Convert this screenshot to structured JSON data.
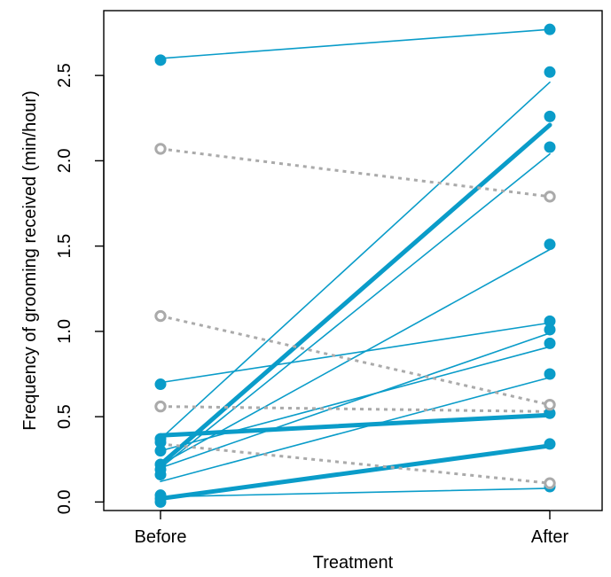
{
  "chart_data": {
    "type": "line",
    "xlabel": "Treatment",
    "ylabel": "Frequency of grooming received (min/hour)",
    "categories": [
      "Before",
      "After"
    ],
    "ylim": [
      -0.05,
      2.88
    ],
    "yticks": [
      0.0,
      0.5,
      1.0,
      1.5,
      2.0,
      2.5
    ],
    "ytick_labels": [
      "0.0",
      "0.5",
      "1.0",
      "1.5",
      "2.0",
      "2.5"
    ],
    "grid": false,
    "legend": "none",
    "colors": {
      "increase": "#0a9cc9",
      "decrease": "#aaaaaa"
    },
    "series": [
      {
        "values": [
          2.6,
          2.77
        ],
        "trend": "increase",
        "bold": false
      },
      {
        "values": [
          0.37,
          2.46
        ],
        "trend": "increase",
        "bold": false
      },
      {
        "values": [
          0.22,
          2.21
        ],
        "trend": "increase",
        "bold": true
      },
      {
        "values": [
          0.2,
          2.04
        ],
        "trend": "increase",
        "bold": false
      },
      {
        "values": [
          0.22,
          1.48
        ],
        "trend": "increase",
        "bold": false
      },
      {
        "values": [
          0.7,
          1.05
        ],
        "trend": "increase",
        "bold": false
      },
      {
        "values": [
          0.2,
          0.99
        ],
        "trend": "increase",
        "bold": false
      },
      {
        "values": [
          0.3,
          0.91
        ],
        "trend": "increase",
        "bold": false
      },
      {
        "values": [
          0.12,
          0.73
        ],
        "trend": "increase",
        "bold": false
      },
      {
        "values": [
          0.39,
          0.51
        ],
        "trend": "increase",
        "bold": true
      },
      {
        "values": [
          0.02,
          0.33
        ],
        "trend": "increase",
        "bold": true
      },
      {
        "values": [
          0.03,
          0.08
        ],
        "trend": "increase",
        "bold": false
      },
      {
        "values": [
          2.07,
          1.79
        ],
        "trend": "decrease",
        "bold": false
      },
      {
        "values": [
          1.09,
          0.57
        ],
        "trend": "decrease",
        "bold": false
      },
      {
        "values": [
          0.56,
          0.53
        ],
        "trend": "decrease",
        "bold": false
      },
      {
        "values": [
          0.34,
          0.11
        ],
        "trend": "decrease",
        "bold": false
      }
    ],
    "points_before": [
      {
        "y": 2.59,
        "open": false
      },
      {
        "y": 0.69,
        "open": false
      },
      {
        "y": 0.37,
        "open": false
      },
      {
        "y": 0.35,
        "open": false
      },
      {
        "y": 0.3,
        "open": false
      },
      {
        "y": 0.22,
        "open": false
      },
      {
        "y": 0.19,
        "open": false
      },
      {
        "y": 0.16,
        "open": false
      },
      {
        "y": 0.04,
        "open": false
      },
      {
        "y": 0.02,
        "open": false
      },
      {
        "y": 0.0,
        "open": false
      },
      {
        "y": 2.07,
        "open": true
      },
      {
        "y": 1.09,
        "open": true
      },
      {
        "y": 0.56,
        "open": true
      }
    ],
    "points_after": [
      {
        "y": 2.77,
        "open": false
      },
      {
        "y": 2.52,
        "open": false
      },
      {
        "y": 2.26,
        "open": false
      },
      {
        "y": 2.08,
        "open": false
      },
      {
        "y": 1.51,
        "open": false
      },
      {
        "y": 1.06,
        "open": false
      },
      {
        "y": 1.01,
        "open": false
      },
      {
        "y": 0.93,
        "open": false
      },
      {
        "y": 0.75,
        "open": false
      },
      {
        "y": 0.52,
        "open": false
      },
      {
        "y": 0.34,
        "open": false
      },
      {
        "y": 0.09,
        "open": false
      },
      {
        "y": 1.79,
        "open": true
      },
      {
        "y": 0.57,
        "open": true
      },
      {
        "y": 0.11,
        "open": true
      }
    ]
  }
}
